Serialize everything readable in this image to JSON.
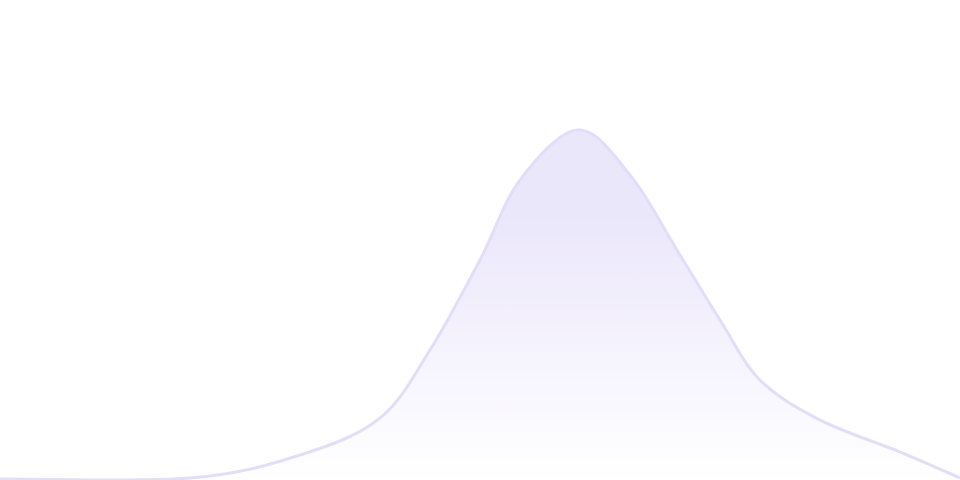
{
  "chart_data": {
    "type": "area",
    "title": "",
    "xlabel": "",
    "ylabel": "",
    "xlim": [
      0,
      96
    ],
    "ylim": [
      0,
      480
    ],
    "grid": false,
    "axes_visible": false,
    "x": [
      0,
      19,
      30,
      38,
      43,
      48,
      52,
      57.8,
      63,
      68,
      72,
      76,
      82,
      90,
      96
    ],
    "series": [
      {
        "values": [
          1,
          2,
          25,
          62,
          130,
          220,
          300,
          350,
          305,
          225,
          160,
          100,
          60,
          28,
          2
        ]
      }
    ],
    "colors": {
      "stroke": "#e2ddf8",
      "fill_top": "#ebe7fb",
      "fill_bottom": "#ffffff"
    }
  }
}
